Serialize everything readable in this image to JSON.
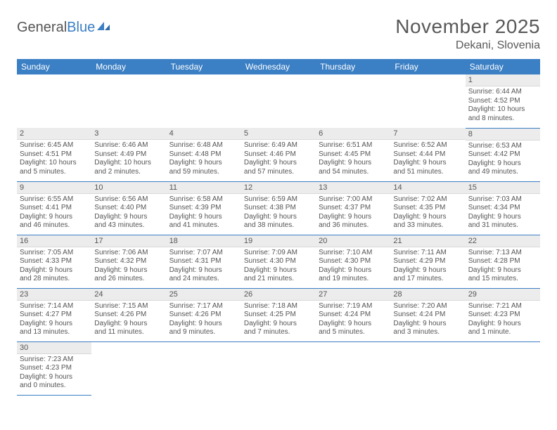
{
  "logo": {
    "part1": "General",
    "part2": "Blue"
  },
  "title": "November 2025",
  "location": "Dekani, Slovenia",
  "colors": {
    "header_blue": "#3b7fc4",
    "daynum_bg": "#ececec",
    "text": "#555555",
    "title_text": "#595959"
  },
  "day_headers": [
    "Sunday",
    "Monday",
    "Tuesday",
    "Wednesday",
    "Thursday",
    "Friday",
    "Saturday"
  ],
  "weeks": [
    [
      null,
      null,
      null,
      null,
      null,
      null,
      {
        "n": "1",
        "r": "Sunrise: 6:44 AM",
        "s": "Sunset: 4:52 PM",
        "d1": "Daylight: 10 hours",
        "d2": "and 8 minutes."
      }
    ],
    [
      {
        "n": "2",
        "r": "Sunrise: 6:45 AM",
        "s": "Sunset: 4:51 PM",
        "d1": "Daylight: 10 hours",
        "d2": "and 5 minutes."
      },
      {
        "n": "3",
        "r": "Sunrise: 6:46 AM",
        "s": "Sunset: 4:49 PM",
        "d1": "Daylight: 10 hours",
        "d2": "and 2 minutes."
      },
      {
        "n": "4",
        "r": "Sunrise: 6:48 AM",
        "s": "Sunset: 4:48 PM",
        "d1": "Daylight: 9 hours",
        "d2": "and 59 minutes."
      },
      {
        "n": "5",
        "r": "Sunrise: 6:49 AM",
        "s": "Sunset: 4:46 PM",
        "d1": "Daylight: 9 hours",
        "d2": "and 57 minutes."
      },
      {
        "n": "6",
        "r": "Sunrise: 6:51 AM",
        "s": "Sunset: 4:45 PM",
        "d1": "Daylight: 9 hours",
        "d2": "and 54 minutes."
      },
      {
        "n": "7",
        "r": "Sunrise: 6:52 AM",
        "s": "Sunset: 4:44 PM",
        "d1": "Daylight: 9 hours",
        "d2": "and 51 minutes."
      },
      {
        "n": "8",
        "r": "Sunrise: 6:53 AM",
        "s": "Sunset: 4:42 PM",
        "d1": "Daylight: 9 hours",
        "d2": "and 49 minutes."
      }
    ],
    [
      {
        "n": "9",
        "r": "Sunrise: 6:55 AM",
        "s": "Sunset: 4:41 PM",
        "d1": "Daylight: 9 hours",
        "d2": "and 46 minutes."
      },
      {
        "n": "10",
        "r": "Sunrise: 6:56 AM",
        "s": "Sunset: 4:40 PM",
        "d1": "Daylight: 9 hours",
        "d2": "and 43 minutes."
      },
      {
        "n": "11",
        "r": "Sunrise: 6:58 AM",
        "s": "Sunset: 4:39 PM",
        "d1": "Daylight: 9 hours",
        "d2": "and 41 minutes."
      },
      {
        "n": "12",
        "r": "Sunrise: 6:59 AM",
        "s": "Sunset: 4:38 PM",
        "d1": "Daylight: 9 hours",
        "d2": "and 38 minutes."
      },
      {
        "n": "13",
        "r": "Sunrise: 7:00 AM",
        "s": "Sunset: 4:37 PM",
        "d1": "Daylight: 9 hours",
        "d2": "and 36 minutes."
      },
      {
        "n": "14",
        "r": "Sunrise: 7:02 AM",
        "s": "Sunset: 4:35 PM",
        "d1": "Daylight: 9 hours",
        "d2": "and 33 minutes."
      },
      {
        "n": "15",
        "r": "Sunrise: 7:03 AM",
        "s": "Sunset: 4:34 PM",
        "d1": "Daylight: 9 hours",
        "d2": "and 31 minutes."
      }
    ],
    [
      {
        "n": "16",
        "r": "Sunrise: 7:05 AM",
        "s": "Sunset: 4:33 PM",
        "d1": "Daylight: 9 hours",
        "d2": "and 28 minutes."
      },
      {
        "n": "17",
        "r": "Sunrise: 7:06 AM",
        "s": "Sunset: 4:32 PM",
        "d1": "Daylight: 9 hours",
        "d2": "and 26 minutes."
      },
      {
        "n": "18",
        "r": "Sunrise: 7:07 AM",
        "s": "Sunset: 4:31 PM",
        "d1": "Daylight: 9 hours",
        "d2": "and 24 minutes."
      },
      {
        "n": "19",
        "r": "Sunrise: 7:09 AM",
        "s": "Sunset: 4:30 PM",
        "d1": "Daylight: 9 hours",
        "d2": "and 21 minutes."
      },
      {
        "n": "20",
        "r": "Sunrise: 7:10 AM",
        "s": "Sunset: 4:30 PM",
        "d1": "Daylight: 9 hours",
        "d2": "and 19 minutes."
      },
      {
        "n": "21",
        "r": "Sunrise: 7:11 AM",
        "s": "Sunset: 4:29 PM",
        "d1": "Daylight: 9 hours",
        "d2": "and 17 minutes."
      },
      {
        "n": "22",
        "r": "Sunrise: 7:13 AM",
        "s": "Sunset: 4:28 PM",
        "d1": "Daylight: 9 hours",
        "d2": "and 15 minutes."
      }
    ],
    [
      {
        "n": "23",
        "r": "Sunrise: 7:14 AM",
        "s": "Sunset: 4:27 PM",
        "d1": "Daylight: 9 hours",
        "d2": "and 13 minutes."
      },
      {
        "n": "24",
        "r": "Sunrise: 7:15 AM",
        "s": "Sunset: 4:26 PM",
        "d1": "Daylight: 9 hours",
        "d2": "and 11 minutes."
      },
      {
        "n": "25",
        "r": "Sunrise: 7:17 AM",
        "s": "Sunset: 4:26 PM",
        "d1": "Daylight: 9 hours",
        "d2": "and 9 minutes."
      },
      {
        "n": "26",
        "r": "Sunrise: 7:18 AM",
        "s": "Sunset: 4:25 PM",
        "d1": "Daylight: 9 hours",
        "d2": "and 7 minutes."
      },
      {
        "n": "27",
        "r": "Sunrise: 7:19 AM",
        "s": "Sunset: 4:24 PM",
        "d1": "Daylight: 9 hours",
        "d2": "and 5 minutes."
      },
      {
        "n": "28",
        "r": "Sunrise: 7:20 AM",
        "s": "Sunset: 4:24 PM",
        "d1": "Daylight: 9 hours",
        "d2": "and 3 minutes."
      },
      {
        "n": "29",
        "r": "Sunrise: 7:21 AM",
        "s": "Sunset: 4:23 PM",
        "d1": "Daylight: 9 hours",
        "d2": "and 1 minute."
      }
    ],
    [
      {
        "n": "30",
        "r": "Sunrise: 7:23 AM",
        "s": "Sunset: 4:23 PM",
        "d1": "Daylight: 9 hours",
        "d2": "and 0 minutes."
      },
      null,
      null,
      null,
      null,
      null,
      null
    ]
  ]
}
